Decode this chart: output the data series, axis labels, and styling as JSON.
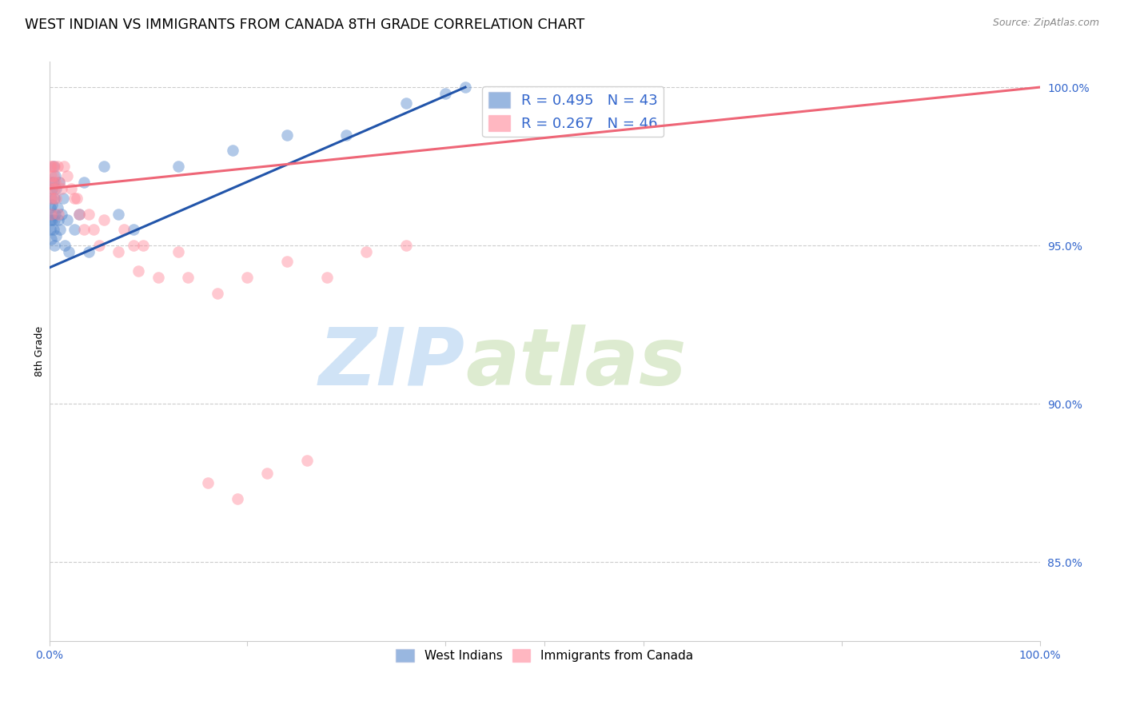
{
  "title": "WEST INDIAN VS IMMIGRANTS FROM CANADA 8TH GRADE CORRELATION CHART",
  "source": "Source: ZipAtlas.com",
  "ylabel": "8th Grade",
  "ylabel_right_ticks": [
    "100.0%",
    "95.0%",
    "90.0%",
    "85.0%"
  ],
  "ylabel_right_vals": [
    1.0,
    0.95,
    0.9,
    0.85
  ],
  "legend_labels_top": [
    "R = 0.495   N = 43",
    "R = 0.267   N = 46"
  ],
  "legend_footer": [
    "West Indians",
    "Immigrants from Canada"
  ],
  "watermark_zip": "ZIP",
  "watermark_atlas": "atlas",
  "background_color": "#ffffff",
  "dot_size": 110,
  "dot_alpha": 0.45,
  "blue_color": "#5588cc",
  "pink_color": "#ff8899",
  "blue_line_color": "#2255aa",
  "pink_line_color": "#ee6677",
  "grid_color": "#cccccc",
  "title_fontsize": 12.5,
  "tick_color": "#3366cc",
  "blue_x": [
    0.001,
    0.001,
    0.001,
    0.002,
    0.002,
    0.002,
    0.002,
    0.003,
    0.003,
    0.003,
    0.004,
    0.004,
    0.004,
    0.005,
    0.005,
    0.005,
    0.006,
    0.006,
    0.007,
    0.007,
    0.008,
    0.009,
    0.01,
    0.011,
    0.012,
    0.014,
    0.016,
    0.018,
    0.02,
    0.025,
    0.03,
    0.035,
    0.04,
    0.055,
    0.07,
    0.085,
    0.13,
    0.185,
    0.24,
    0.3,
    0.36,
    0.4,
    0.42
  ],
  "blue_y": [
    0.962,
    0.958,
    0.955,
    0.97,
    0.965,
    0.96,
    0.952,
    0.968,
    0.963,
    0.958,
    0.975,
    0.97,
    0.955,
    0.965,
    0.958,
    0.95,
    0.972,
    0.96,
    0.968,
    0.953,
    0.962,
    0.958,
    0.97,
    0.955,
    0.96,
    0.965,
    0.95,
    0.958,
    0.948,
    0.955,
    0.96,
    0.97,
    0.948,
    0.975,
    0.96,
    0.955,
    0.975,
    0.98,
    0.985,
    0.985,
    0.995,
    0.998,
    1.0
  ],
  "pink_x": [
    0.001,
    0.001,
    0.002,
    0.002,
    0.002,
    0.003,
    0.003,
    0.004,
    0.004,
    0.005,
    0.005,
    0.006,
    0.007,
    0.008,
    0.009,
    0.01,
    0.012,
    0.015,
    0.018,
    0.022,
    0.028,
    0.035,
    0.05,
    0.07,
    0.09,
    0.11,
    0.14,
    0.17,
    0.2,
    0.24,
    0.28,
    0.32,
    0.36,
    0.04,
    0.055,
    0.075,
    0.095,
    0.025,
    0.03,
    0.045,
    0.085,
    0.13,
    0.16,
    0.19,
    0.22,
    0.26
  ],
  "pink_y": [
    0.975,
    0.965,
    0.972,
    0.968,
    0.96,
    0.97,
    0.975,
    0.965,
    0.972,
    0.968,
    0.975,
    0.97,
    0.965,
    0.975,
    0.96,
    0.97,
    0.968,
    0.975,
    0.972,
    0.968,
    0.965,
    0.955,
    0.95,
    0.948,
    0.942,
    0.94,
    0.94,
    0.935,
    0.94,
    0.945,
    0.94,
    0.948,
    0.95,
    0.96,
    0.958,
    0.955,
    0.95,
    0.965,
    0.96,
    0.955,
    0.95,
    0.948,
    0.875,
    0.87,
    0.878,
    0.882
  ],
  "blue_trendline_x": [
    0.0,
    0.42
  ],
  "blue_trendline_y": [
    0.943,
    1.0
  ],
  "pink_trendline_x": [
    0.0,
    1.0
  ],
  "pink_trendline_y": [
    0.968,
    1.0
  ],
  "xlim": [
    0.0,
    1.0
  ],
  "ylim": [
    0.825,
    1.008
  ]
}
